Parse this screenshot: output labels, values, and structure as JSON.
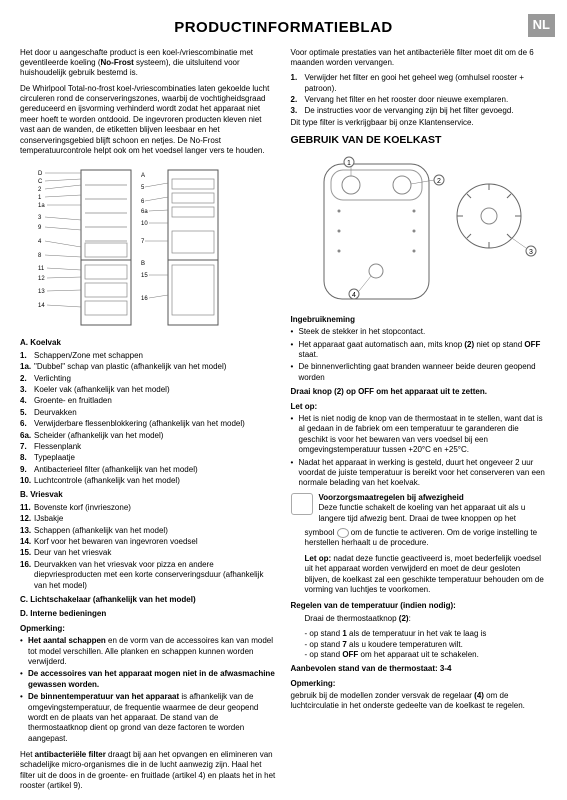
{
  "lang_badge": "NL",
  "title": "PRODUCTINFORMATIEBLAD",
  "left": {
    "intro1_a": "Het door u aangeschafte product is een koel-/vriescombinatie met geventileerde koeling (",
    "intro1_b": "No-Frost",
    "intro1_c": " systeem), die uitsluitend voor huishoudelijk gebruik bestemd is.",
    "intro2": "De Whirlpool Total-no-frost koel-/vriescombinaties laten gekoelde lucht circuleren rond de conserveringszones, waarbij de vochtigheidsgraad gereduceerd en ijsvorming verhinderd wordt zodat het apparaat niet meer hoeft te worden ontdooid. De ingevroren producten kleven niet vast aan de wanden, de etiketten blijven leesbaar en het conserveringsgebied blijft schoon en netjes. De No-Frost temperatuurcontrole helpt ook om het voedsel langer vers te houden.",
    "A_head": "A. Koelvak",
    "A_items": [
      {
        "n": "1.",
        "t": "Schappen/Zone met schappen"
      },
      {
        "n": "1a.",
        "t": "\"Dubbel\" schap van plastic (afhankelijk van het model)"
      },
      {
        "n": "2.",
        "t": "Verlichting"
      },
      {
        "n": "3.",
        "t": "Koeler vak (afhankelijk van het model)"
      },
      {
        "n": "4.",
        "t": "Groente- en fruitladen"
      },
      {
        "n": "5.",
        "t": "Deurvakken"
      },
      {
        "n": "6.",
        "t": "Verwijderbare flessenblokkering (afhankelijk van het model)"
      },
      {
        "n": "6a.",
        "t": "Scheider (afhankelijk van het model)"
      },
      {
        "n": "7.",
        "t": "Flessenplank"
      },
      {
        "n": "8.",
        "t": "Typeplaatje"
      },
      {
        "n": "9.",
        "t": "Antibacterieel filter (afhankelijk van het model)"
      },
      {
        "n": "10.",
        "t": "Luchtcontrole (afhankelijk van het model)"
      }
    ],
    "B_head": "B. Vriesvak",
    "B_items": [
      {
        "n": "11.",
        "t": "Bovenste korf (invrieszone)"
      },
      {
        "n": "12.",
        "t": "IJsbakje"
      },
      {
        "n": "13.",
        "t": "Schappen (afhankelijk van het model)"
      },
      {
        "n": "14.",
        "t": "Korf voor het bewaren van ingevroren voedsel"
      },
      {
        "n": "15.",
        "t": "Deur van het vriesvak"
      },
      {
        "n": "16.",
        "t": "Deurvakken van het vriesvak voor pizza en andere diepvriesproducten met een korte conserveringsduur (afhankelijk van het model)"
      }
    ],
    "C_head": "C. Lichtschakelaar (afhankelijk van het model)",
    "D_head": "D. Interne bedieningen",
    "opmerking": "Opmerking:",
    "op_items": [
      {
        "b": "Het aantal schappen",
        "t": " en de vorm van de accessoires kan van model tot model verschillen. Alle planken en schappen kunnen worden verwijderd."
      },
      {
        "b": "De accessoires van het apparaat mogen niet in de afwasmachine gewassen worden.",
        "t": ""
      },
      {
        "b": "De binnentemperatuur van het apparaat",
        "t": " is afhankelijk van de omgevingstemperatuur, de frequentie waarmee de deur geopend wordt en de plaats van het apparaat. De stand van de thermostaatknop dient op grond van deze factoren te worden aangepast."
      }
    ],
    "anti1_a": "Het ",
    "anti1_b": "antibacteriële filter",
    "anti1_c": " draagt bij aan het opvangen en elimineren van schadelijke micro-organismes die in de lucht aanwezig zijn. Haal het filter uit de doos in de groente- en fruitlade (artikel 4) en plaats het in het rooster (artikel 9)."
  },
  "right": {
    "intro": "Voor optimale prestaties van het antibacteriële filter moet dit om de 6 maanden worden vervangen.",
    "steps": [
      {
        "n": "1.",
        "t": "Verwijder het filter en gooi het geheel weg (omhulsel rooster + patroon)."
      },
      {
        "n": "2.",
        "t": "Vervang het filter en het rooster door nieuwe exemplaren."
      },
      {
        "n": "3.",
        "t": "De instructies voor de vervanging zijn bij het filter gevoegd."
      }
    ],
    "tail": "Dit type filter is verkrijgbaar bij onze Klantenservice.",
    "heading": "GEBRUIK VAN DE KOELKAST",
    "ingebruik": "Ingebruikneming",
    "ing_items": [
      "Steek de stekker in het stopcontact.",
      "Het apparaat gaat automatisch aan, mits knop (2) niet op stand OFF staat.",
      "De binnenverlichting gaat branden wanneer beide deuren geopend worden"
    ],
    "off_bold": "OFF",
    "draai": "Draai knop (2) op OFF om het apparaat uit te zetten.",
    "letop": "Let op:",
    "letop_items": [
      "Het is niet nodig de knop van de thermostaat in te stellen, want dat is al gedaan in de fabriek om een temperatuur te garanderen die geschikt is voor het bewaren van vers voedsel bij een omgevingstemperatuur tussen +20°C en +25°C.",
      "Nadat het apparaat in werking is gesteld, duurt het ongeveer 2 uur voordat de juiste temperatuur is bereikt voor het conserveren van een normale belading van het koelvak."
    ],
    "prec_head": "Voorzorgsmaatregelen bij afwezigheid",
    "prec1": "Deze functie schakelt de koeling van het apparaat uit als u langere tijd afwezig bent. Draai de twee knoppen op het",
    "prec2_a": "symbool ",
    "prec2_b": " om de functie te activeren. Om de vorige instelling te herstellen herhaalt u de procedure.",
    "prec3_a": "Let op:",
    "prec3_b": " nadat deze functie geactiveerd is, moet bederfelijk voedsel uit het apparaat worden verwijderd en moet de deur gesloten blijven, de koelkast zal een geschikte temperatuur behouden om de vorming van luchtjes te voorkomen.",
    "regelen_head": "Regelen van de temperatuur (indien nodig):",
    "reg1": "Draai de thermostaatknop (2):",
    "reg_items": [
      "- op stand 1 als de temperatuur in het vak te laag is",
      "- op stand 7 als u koudere temperaturen wilt.",
      "- op stand OFF om het apparaat uit te schakelen."
    ],
    "reg_b1": "1",
    "reg_b7": "7",
    "reg_bOFF": "OFF",
    "aanbevolen": "Aanbevolen stand van de thermostaat: 3-4",
    "opmerking2": "Opmerking:",
    "op2_a": "gebruik bij de modellen zonder versvak de regelaar ",
    "op2_b": "(4)",
    "op2_c": " om de luchtcirculatie in het onderste gedeelte van de koelkast te regelen."
  },
  "diagram_left": {
    "labels": [
      "D",
      "C",
      "2",
      "1",
      "1a",
      "3",
      "9",
      "4",
      "8",
      "11",
      "12",
      "13",
      "14",
      "A",
      "5",
      "6",
      "6a",
      "10",
      "7",
      "B",
      "15",
      "16"
    ]
  },
  "diagram_right": {
    "labels": [
      "1",
      "2",
      "4",
      "3"
    ]
  }
}
